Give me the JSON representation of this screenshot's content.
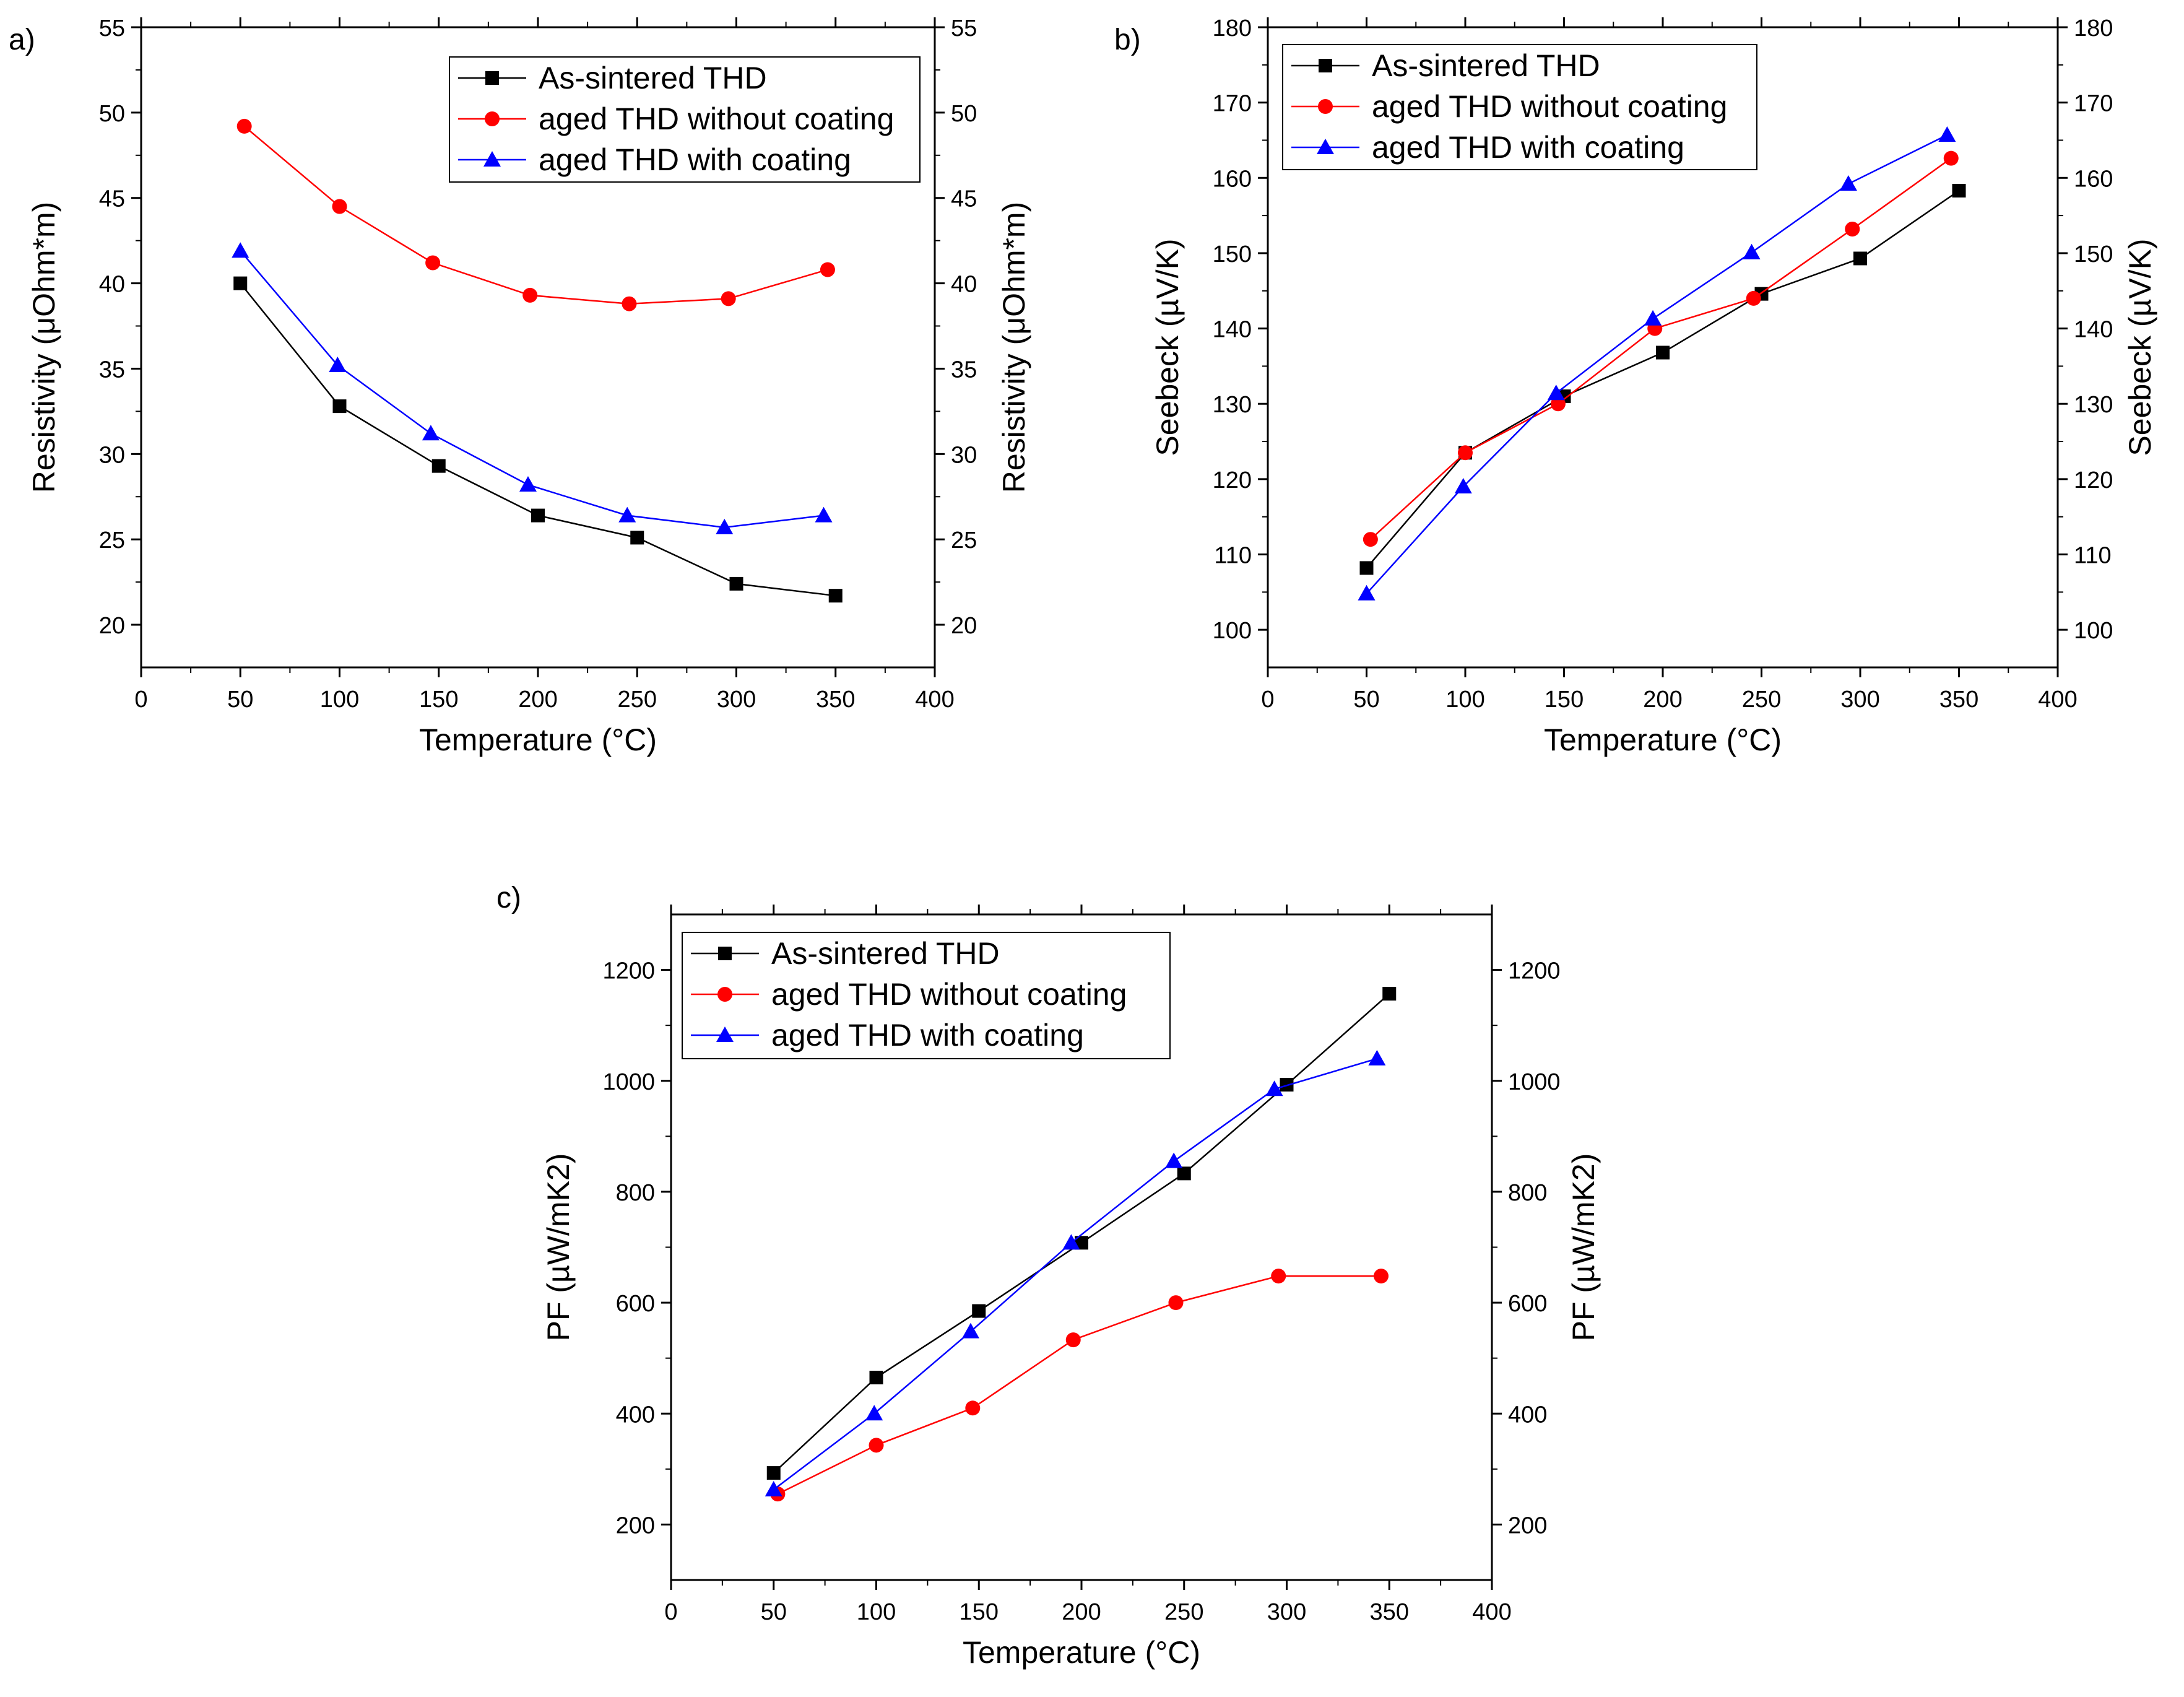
{
  "chart_data": [
    {
      "panel_label": "a)",
      "type": "line",
      "xlabel": "Temperature (°C)",
      "ylabel": "Resistivity (μOhm*m)",
      "ylabel_right": "Resistivity (μOhm*m)",
      "xlim": [
        0,
        400
      ],
      "ylim": [
        17.5,
        55
      ],
      "xticks": [
        0,
        50,
        100,
        150,
        200,
        250,
        300,
        350,
        400
      ],
      "yticks": [
        20,
        25,
        30,
        35,
        40,
        45,
        50,
        55
      ],
      "legend_position": "top-right",
      "series": [
        {
          "name": "As-sintered THD",
          "color": "#000000",
          "marker": "square",
          "x": [
            50,
            100,
            150,
            200,
            250,
            300,
            350
          ],
          "y": [
            40.0,
            32.8,
            29.3,
            26.4,
            25.1,
            22.4,
            21.7
          ]
        },
        {
          "name": "aged THD without coating",
          "color": "#ff0000",
          "marker": "circle",
          "x": [
            52,
            100,
            147,
            196,
            246,
            296,
            346
          ],
          "y": [
            49.2,
            44.5,
            41.2,
            39.3,
            38.8,
            39.1,
            40.8
          ]
        },
        {
          "name": "aged THD with coating",
          "color": "#0000ff",
          "marker": "triangle",
          "x": [
            50,
            99,
            146,
            195,
            245,
            294,
            344
          ],
          "y": [
            41.9,
            35.2,
            31.2,
            28.2,
            26.4,
            25.7,
            26.4
          ]
        }
      ]
    },
    {
      "panel_label": "b)",
      "type": "line",
      "xlabel": "Temperature (°C)",
      "ylabel": "Seebeck (µV/K)",
      "ylabel_right": "Seebeck (µV/K)",
      "xlim": [
        0,
        400
      ],
      "ylim": [
        95,
        180
      ],
      "xticks": [
        0,
        50,
        100,
        150,
        200,
        250,
        300,
        350,
        400
      ],
      "yticks": [
        100,
        110,
        120,
        130,
        140,
        150,
        160,
        170,
        180
      ],
      "legend_position": "top-left",
      "series": [
        {
          "name": "As-sintered THD",
          "color": "#000000",
          "marker": "square",
          "x": [
            50,
            100,
            150,
            200,
            250,
            300,
            350
          ],
          "y": [
            108.2,
            123.5,
            131.0,
            136.8,
            144.6,
            149.3,
            158.3
          ]
        },
        {
          "name": "aged THD without coating",
          "color": "#ff0000",
          "marker": "circle",
          "x": [
            52,
            100,
            147,
            196,
            246,
            296,
            346
          ],
          "y": [
            112.0,
            123.5,
            130.0,
            140.0,
            144.0,
            153.2,
            162.6
          ]
        },
        {
          "name": "aged THD with coating",
          "color": "#0000ff",
          "marker": "triangle",
          "x": [
            50,
            99,
            146,
            195,
            245,
            294,
            344
          ],
          "y": [
            104.8,
            119.0,
            131.4,
            141.3,
            150.1,
            159.2,
            165.7
          ]
        }
      ]
    },
    {
      "panel_label": "c)",
      "type": "line",
      "xlabel": "Temperature (°C)",
      "ylabel": "PF (µW/mK2)",
      "ylabel_right": "PF (µW/mK2)",
      "xlim": [
        0,
        400
      ],
      "ylim": [
        100,
        1300
      ],
      "xticks": [
        0,
        50,
        100,
        150,
        200,
        250,
        300,
        350,
        400
      ],
      "yticks": [
        200,
        400,
        600,
        800,
        1000,
        1200
      ],
      "legend_position": "top-left",
      "series": [
        {
          "name": "As-sintered THD",
          "color": "#000000",
          "marker": "square",
          "x": [
            50,
            100,
            150,
            200,
            250,
            300,
            350
          ],
          "y": [
            293,
            465,
            585,
            708,
            833,
            993,
            1157
          ]
        },
        {
          "name": "aged THD without coating",
          "color": "#ff0000",
          "marker": "circle",
          "x": [
            52,
            100,
            147,
            196,
            246,
            296,
            346
          ],
          "y": [
            255,
            343,
            410,
            533,
            600,
            648,
            648
          ]
        },
        {
          "name": "aged THD with coating",
          "color": "#0000ff",
          "marker": "triangle",
          "x": [
            50,
            99,
            146,
            195,
            245,
            294,
            344
          ],
          "y": [
            263,
            400,
            548,
            708,
            855,
            985,
            1040
          ]
        }
      ]
    }
  ]
}
